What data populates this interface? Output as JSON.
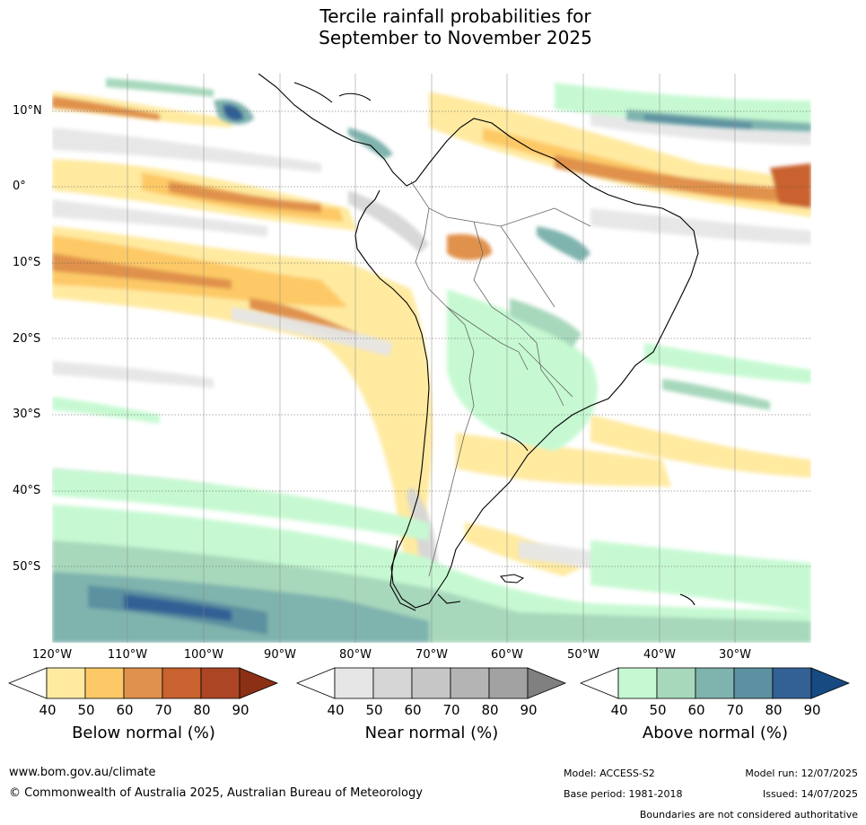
{
  "title": {
    "line1": "Tercile rainfall probabilities for",
    "line2": "September to November 2025"
  },
  "map": {
    "latitude_labels": [
      "10°N",
      "0°",
      "10°S",
      "20°S",
      "30°S",
      "40°S",
      "50°S"
    ],
    "longitude_labels": [
      "120°W",
      "110°W",
      "100°W",
      "90°W",
      "80°W",
      "70°W",
      "60°W",
      "50°W",
      "40°W",
      "30°W"
    ]
  },
  "legends": {
    "below": {
      "title": "Below normal (%)",
      "ticks": [
        "40",
        "50",
        "60",
        "70",
        "80",
        "90"
      ],
      "colors": [
        "#ffffff",
        "#ffeaa0",
        "#fdc966",
        "#e0914c",
        "#c9622f",
        "#ac4523",
        "#8b2f15"
      ]
    },
    "near": {
      "title": "Near normal (%)",
      "ticks": [
        "40",
        "50",
        "60",
        "70",
        "80",
        "90"
      ],
      "colors": [
        "#ffffff",
        "#e6e6e6",
        "#d6d6d6",
        "#c6c6c6",
        "#b4b4b4",
        "#a2a2a2",
        "#808080"
      ]
    },
    "above": {
      "title": "Above normal (%)",
      "ticks": [
        "40",
        "50",
        "60",
        "70",
        "80",
        "90"
      ],
      "colors": [
        "#ffffff",
        "#c6f9d2",
        "#a7d8bc",
        "#7fb3ae",
        "#5b91a0",
        "#336195",
        "#184a82"
      ]
    }
  },
  "footer": {
    "website": "www.bom.gov.au/climate",
    "copyright": "© Commonwealth of Australia 2025, Australian Bureau of Meteorology",
    "model": "Model: ACCESS-S2",
    "base_period": "Base period: 1981-2018",
    "model_run": "Model run: 12/07/2025",
    "issued": "Issued: 14/07/2025",
    "boundaries_note": "Boundaries are not considered authoritative"
  }
}
